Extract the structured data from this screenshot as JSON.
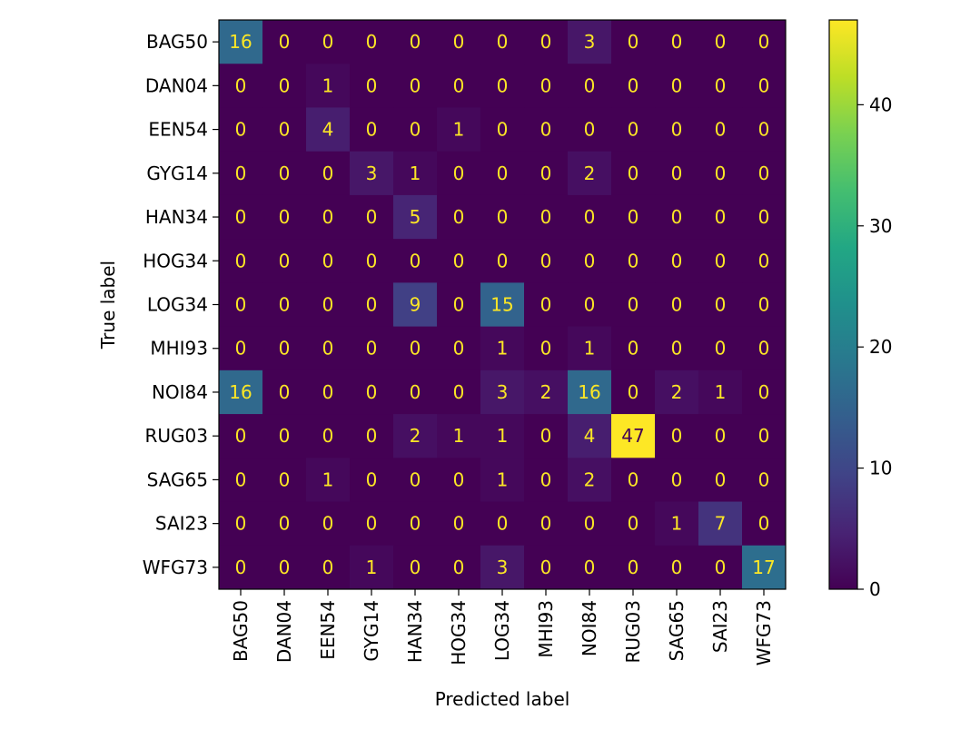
{
  "chart_data": {
    "type": "heatmap",
    "title": "",
    "xlabel": "Predicted label",
    "ylabel": "True label",
    "x_categories": [
      "BAG50",
      "DAN04",
      "EEN54",
      "GYG14",
      "HAN34",
      "HOG34",
      "LOG34",
      "MHI93",
      "NOI84",
      "RUG03",
      "SAG65",
      "SAI23",
      "WFG73"
    ],
    "y_categories": [
      "BAG50",
      "DAN04",
      "EEN54",
      "GYG14",
      "HAN34",
      "HOG34",
      "LOG34",
      "MHI93",
      "NOI84",
      "RUG03",
      "SAG65",
      "SAI23",
      "WFG73"
    ],
    "values": [
      [
        16,
        0,
        0,
        0,
        0,
        0,
        0,
        0,
        3,
        0,
        0,
        0,
        0
      ],
      [
        0,
        0,
        1,
        0,
        0,
        0,
        0,
        0,
        0,
        0,
        0,
        0,
        0
      ],
      [
        0,
        0,
        4,
        0,
        0,
        1,
        0,
        0,
        0,
        0,
        0,
        0,
        0
      ],
      [
        0,
        0,
        0,
        3,
        1,
        0,
        0,
        0,
        2,
        0,
        0,
        0,
        0
      ],
      [
        0,
        0,
        0,
        0,
        5,
        0,
        0,
        0,
        0,
        0,
        0,
        0,
        0
      ],
      [
        0,
        0,
        0,
        0,
        0,
        0,
        0,
        0,
        0,
        0,
        0,
        0,
        0
      ],
      [
        0,
        0,
        0,
        0,
        9,
        0,
        15,
        0,
        0,
        0,
        0,
        0,
        0
      ],
      [
        0,
        0,
        0,
        0,
        0,
        0,
        1,
        0,
        1,
        0,
        0,
        0,
        0
      ],
      [
        16,
        0,
        0,
        0,
        0,
        0,
        3,
        2,
        16,
        0,
        2,
        1,
        0
      ],
      [
        0,
        0,
        0,
        0,
        2,
        1,
        1,
        0,
        4,
        47,
        0,
        0,
        0
      ],
      [
        0,
        0,
        1,
        0,
        0,
        0,
        1,
        0,
        2,
        0,
        0,
        0,
        0
      ],
      [
        0,
        0,
        0,
        0,
        0,
        0,
        0,
        0,
        0,
        0,
        1,
        7,
        0
      ],
      [
        0,
        0,
        0,
        1,
        0,
        0,
        3,
        0,
        0,
        0,
        0,
        0,
        17
      ]
    ],
    "colormap": "viridis",
    "colorbar": {
      "min": 0,
      "max": 47,
      "ticks": [
        0,
        10,
        20,
        30,
        40
      ]
    },
    "label_colors": {
      "on_dark": "#fde725",
      "on_light": "#440154"
    },
    "grid": false
  }
}
